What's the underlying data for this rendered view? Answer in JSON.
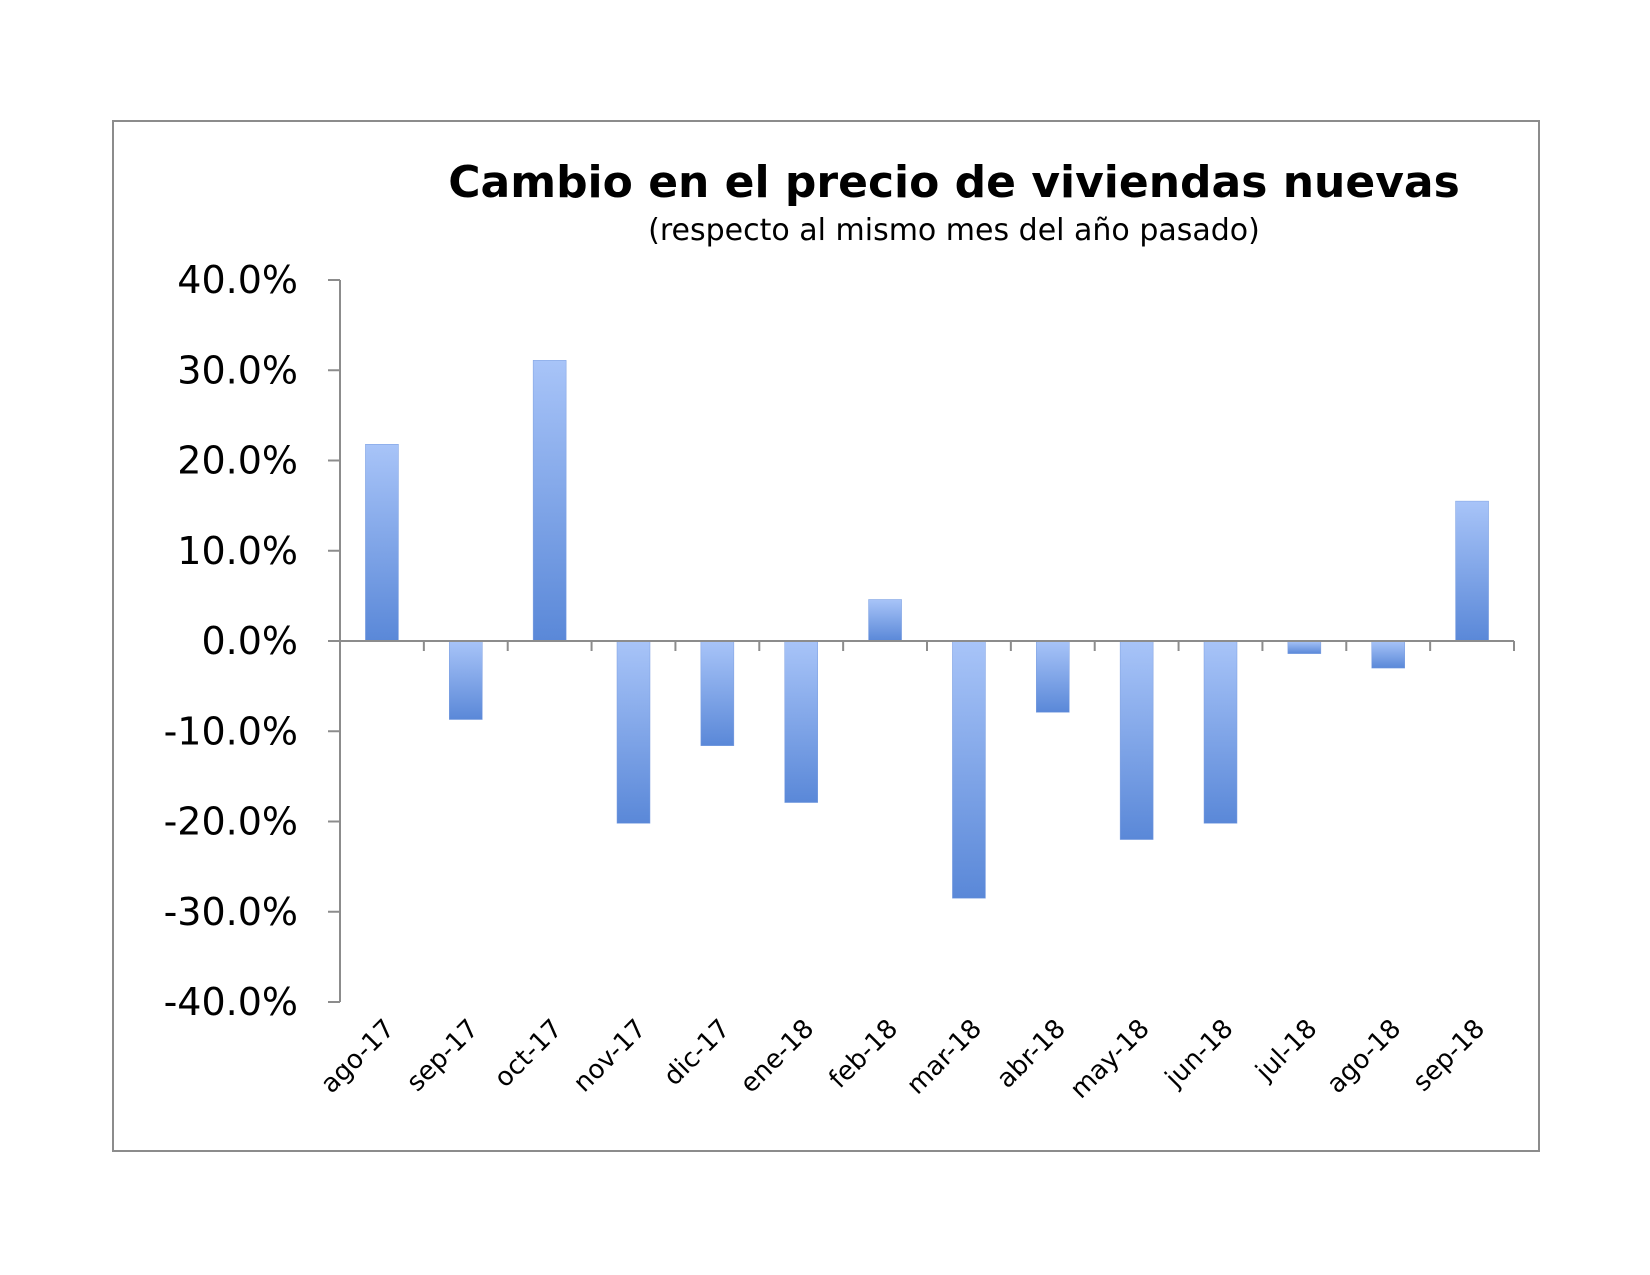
{
  "chart_data": {
    "type": "bar",
    "title": "Cambio en el precio de viviendas nuevas",
    "subtitle": "(respecto al mismo mes del año pasado)",
    "categories": [
      "ago-17",
      "sep-17",
      "oct-17",
      "nov-17",
      "dic-17",
      "ene-18",
      "feb-18",
      "mar-18",
      "abr-18",
      "may-18",
      "jun-18",
      "jul-18",
      "ago-18",
      "sep-18"
    ],
    "values": [
      21.8,
      -8.7,
      31.1,
      -20.2,
      -11.6,
      -17.9,
      4.6,
      -28.5,
      -7.9,
      -22.0,
      -20.2,
      -1.4,
      -3.0,
      15.5
    ],
    "ylim": [
      -40,
      40
    ],
    "yticks": [
      "-40.0%",
      "-30.0%",
      "-20.0%",
      "-10.0%",
      "0.0%",
      "10.0%",
      "20.0%",
      "30.0%",
      "40.0%"
    ],
    "ytick_values": [
      -40,
      -30,
      -20,
      -10,
      0,
      10,
      20,
      30,
      40
    ],
    "grid": false,
    "colors": {
      "bar_top": "#a8c4f8",
      "bar_bottom": "#5a88d8",
      "axis": "#8c8c8c",
      "frame": "#8c8c8c"
    }
  }
}
